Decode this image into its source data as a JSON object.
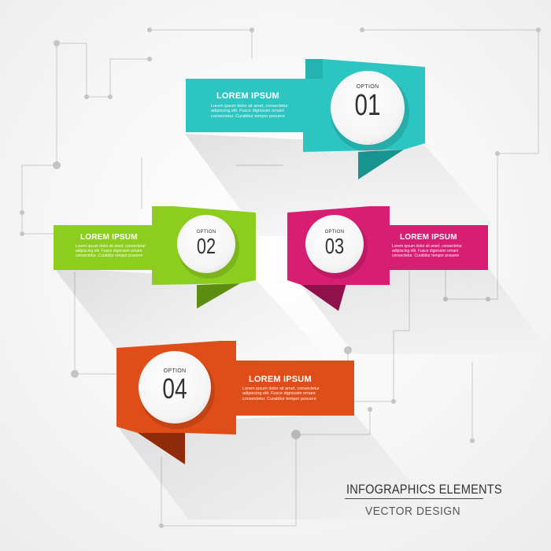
{
  "options": [
    {
      "label": "OPTION",
      "number": "01",
      "heading": "LOREM IPSUM",
      "body": "Lorem ipsum dolor sit amet, consectetur\nadipiscing elit. Fusce dignissim ornare\nconsectetur. Curabitur tempor posuere",
      "color": "#2cc5c2",
      "dark": "#17948f"
    },
    {
      "label": "OPTION",
      "number": "02",
      "heading": "LOREM IPSUM",
      "body": "Lorem ipsum dolor sit amet, consectetur\nadipiscing elit. Fusce dignissim ornare\nconsectetur. Curabitur tempor posuere",
      "color": "#8ccd1f",
      "dark": "#5c8e11"
    },
    {
      "label": "OPTION",
      "number": "03",
      "heading": "LOREM IPSUM",
      "body": "Lorem ipsum dolor sit amet, consectetur\nadipiscing elit. Fusce dignissim ornare\nconsectetur. Curabitur tempor posuere",
      "color": "#d81e73",
      "dark": "#8f1149"
    },
    {
      "label": "OPTION",
      "number": "04",
      "heading": "LOREM IPSUM",
      "body": "Lorem ipsum dolor sit amet, consectetur\nadipiscing elit. Fusce dignissim ornare\nconsectetur. Curabitur tempor posuere",
      "color": "#df4d18",
      "dark": "#8f2b0a"
    }
  ],
  "footer": {
    "title": "INFOGRAPHICS ELEMENTS",
    "subtitle": "VECTOR DESIGN"
  }
}
